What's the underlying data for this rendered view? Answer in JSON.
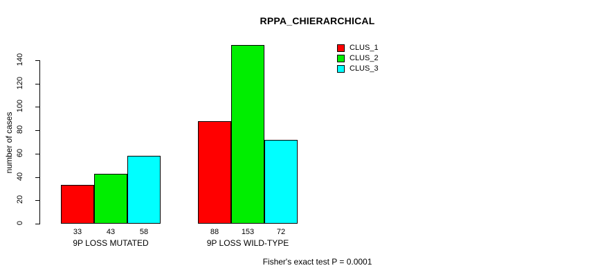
{
  "title": "RPPA_CHIERARCHICAL",
  "annotation": "Fisher's exact test P = 0.0001",
  "chart_data": {
    "type": "bar",
    "title": "RPPA_CHIERARCHICAL",
    "categories": [
      "9P LOSS MUTATED",
      "9P LOSS WILD-TYPE"
    ],
    "series": [
      {
        "name": "CLUS_1",
        "color": "#ff0000",
        "values": [
          33,
          88
        ]
      },
      {
        "name": "CLUS_2",
        "color": "#00ee00",
        "values": [
          43,
          153
        ]
      },
      {
        "name": "CLUS_3",
        "color": "#00ffff",
        "values": [
          58,
          72
        ]
      }
    ],
    "xlabel": "",
    "ylabel": "number of cases",
    "yticks": [
      0,
      20,
      40,
      60,
      80,
      100,
      120,
      140
    ],
    "ylim": [
      0,
      153
    ],
    "grid": false,
    "legend_position": "top-right",
    "bar_value_labels": true,
    "footnote": "Fisher's exact test P = 0.0001"
  }
}
